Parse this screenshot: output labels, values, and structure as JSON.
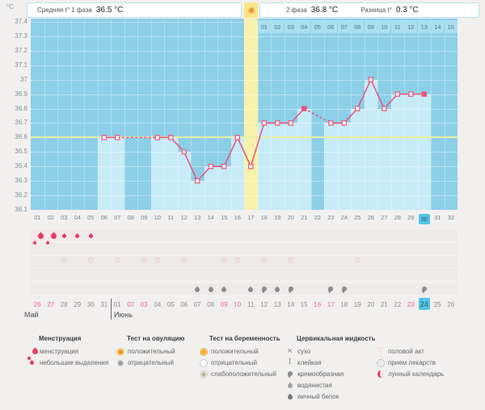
{
  "header": {
    "unit": "°C",
    "avg_phase1_label": "Средняя t° 1 фаза",
    "avg_phase1_value": "36.5 °C",
    "phase2_label": "2 фаза",
    "phase2_value": "36.8 °C",
    "diff_label": "Разница t°",
    "diff_value": "0.3 °C"
  },
  "chart_data": {
    "type": "line",
    "ylim": [
      36.1,
      37.4
    ],
    "ytick_step": 0.1,
    "yticks": [
      "37.4",
      "37.3",
      "37.2",
      "37.1",
      "37",
      "36.9",
      "36.8",
      "36.7",
      "36.6",
      "36.5",
      "36.4",
      "36.3",
      "36.2",
      "36.1"
    ],
    "x_days": [
      "01",
      "02",
      "03",
      "04",
      "05",
      "06",
      "07",
      "08",
      "09",
      "10",
      "11",
      "12",
      "13",
      "14",
      "15",
      "16",
      "17",
      "18",
      "19",
      "20",
      "21",
      "22",
      "23",
      "24",
      "25",
      "26",
      "27",
      "28",
      "29",
      "30",
      "31",
      "32"
    ],
    "temperatures": [
      null,
      null,
      null,
      null,
      null,
      36.6,
      36.6,
      null,
      null,
      36.6,
      36.6,
      36.5,
      36.3,
      36.4,
      36.4,
      36.6,
      36.4,
      36.7,
      36.7,
      36.7,
      36.8,
      null,
      36.7,
      36.7,
      36.8,
      37.0,
      36.8,
      36.9,
      36.9,
      36.9,
      null,
      null
    ],
    "coverline": 36.6,
    "ovulation_day": 17,
    "ovulation_label": "ОВУЛЯЦИЯ",
    "phase2_start_day": 18,
    "phase2_day_labels": [
      "01",
      "02",
      "03",
      "04",
      "05",
      "06",
      "07",
      "08",
      "09",
      "10",
      "11",
      "12",
      "13",
      "14",
      "15"
    ],
    "filled_marker_days": [
      21,
      30
    ],
    "today_day": 30,
    "line_color": "#e7537a",
    "coverline_color": "#e9efa8",
    "band_color": "#f7f1ab",
    "grid": true
  },
  "events": {
    "menstruation": [
      {
        "day": 1,
        "type": "менструация"
      },
      {
        "day": 2,
        "type": "менструация"
      },
      {
        "day": 3,
        "type": "небольшие выделения"
      },
      {
        "day": 4,
        "type": "небольшие выделения"
      },
      {
        "day": 5,
        "type": "небольшие выделения"
      }
    ],
    "intercourse_days": [
      3,
      5,
      7,
      9,
      10,
      12,
      15,
      16,
      18,
      20,
      25
    ],
    "cervical_fluid": [
      {
        "day": 13,
        "type": "водянистая"
      },
      {
        "day": 14,
        "type": "водянистая"
      },
      {
        "day": 15,
        "type": "водянистая"
      },
      {
        "day": 17,
        "type": "водянистая"
      },
      {
        "day": 18,
        "type": "кремообразная"
      },
      {
        "day": 19,
        "type": "водянистая"
      },
      {
        "day": 20,
        "type": "кремообразная"
      },
      {
        "day": 23,
        "type": "кремообразная"
      },
      {
        "day": 24,
        "type": "кремообразная"
      },
      {
        "day": 30,
        "type": "кремообразная"
      }
    ]
  },
  "calendar": {
    "month1_label": "Май",
    "month2_label": "Июнь",
    "dates": [
      "26",
      "27",
      "28",
      "29",
      "30",
      "31",
      "01",
      "02",
      "03",
      "04",
      "05",
      "06",
      "07",
      "08",
      "09",
      "10",
      "11",
      "12",
      "13",
      "14",
      "15",
      "16",
      "17",
      "18",
      "19",
      "20",
      "21",
      "22",
      "23",
      "24",
      "25",
      "26"
    ],
    "weekend_cols": [
      1,
      2,
      8,
      9,
      15,
      16,
      22,
      23,
      29,
      30
    ],
    "today_col": 30,
    "month_break_after_col": 6
  },
  "legend": {
    "groups": [
      {
        "title": "Менструация",
        "items": [
          {
            "icon": "menstruation-icon",
            "label": "менструация"
          },
          {
            "icon": "spotting-icon",
            "label": "небольшие выделения"
          }
        ]
      },
      {
        "title": "Тест на овуляцию",
        "items": [
          {
            "icon": "sun-icon",
            "label": "положительный"
          },
          {
            "icon": "gray-circle-icon",
            "label": "отрицательный"
          }
        ]
      },
      {
        "title": "Тест на беременность",
        "items": [
          {
            "icon": "yellow-circle-icon",
            "label": "положительный"
          },
          {
            "icon": "white-circle-icon",
            "label": "отрицательный"
          },
          {
            "icon": "weak-positive-icon",
            "label": "слабоположительный"
          }
        ]
      },
      {
        "title": "Цервикальная жидкость",
        "items": [
          {
            "icon": "cross-icon",
            "label": "сухо"
          },
          {
            "icon": "ibar-icon",
            "label": "клейкая"
          },
          {
            "icon": "comma-icon",
            "label": "кремообразная"
          },
          {
            "icon": "drop-gray-icon",
            "label": "водянистая"
          },
          {
            "icon": "drop-dark-icon",
            "label": "яичный белок"
          }
        ]
      },
      {
        "title": "",
        "items": [
          {
            "icon": "heart-icon",
            "label": "половой акт"
          },
          {
            "icon": "pill-icon",
            "label": "прием лекарств"
          },
          {
            "icon": "moon-icon",
            "label": "лунный календарь"
          }
        ]
      }
    ]
  }
}
